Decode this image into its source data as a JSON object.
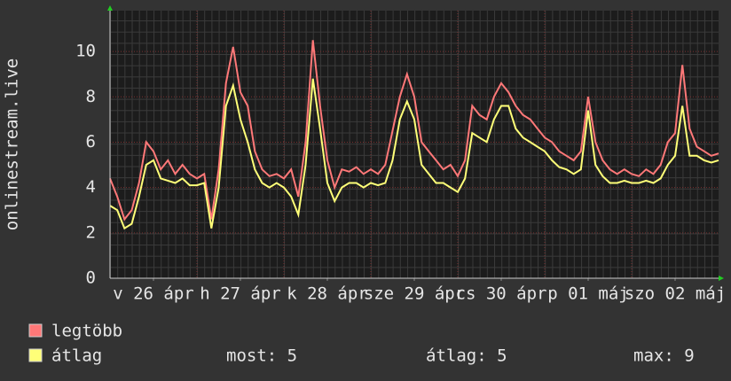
{
  "chart_data": {
    "type": "line",
    "y_label": "onlinestream.live",
    "xlim": [
      0,
      168
    ],
    "ylim": [
      0,
      11.8
    ],
    "xticks": [
      {
        "value": 12,
        "label": "v 26 ápr"
      },
      {
        "value": 36,
        "label": "h 27 ápr"
      },
      {
        "value": 60,
        "label": "k 28 ápr"
      },
      {
        "value": 84,
        "label": "sze 29 ápr"
      },
      {
        "value": 108,
        "label": "cs 30 ápr"
      },
      {
        "value": 132,
        "label": "p 01 máj"
      },
      {
        "value": 156,
        "label": "szo 02 máj"
      }
    ],
    "yticks": [
      0,
      2,
      4,
      6,
      8,
      10
    ],
    "grid": true,
    "x": [
      0,
      2,
      4,
      6,
      8,
      10,
      12,
      14,
      16,
      18,
      20,
      22,
      24,
      26,
      28,
      30,
      32,
      34,
      36,
      38,
      40,
      42,
      44,
      46,
      48,
      50,
      52,
      54,
      56,
      58,
      60,
      62,
      64,
      66,
      68,
      70,
      72,
      74,
      76,
      78,
      80,
      82,
      84,
      86,
      88,
      90,
      92,
      94,
      96,
      98,
      100,
      102,
      104,
      106,
      108,
      110,
      112,
      114,
      116,
      118,
      120,
      122,
      124,
      126,
      128,
      130,
      132,
      134,
      136,
      138,
      140,
      142,
      144,
      146,
      148,
      150,
      152,
      154,
      156,
      158,
      160,
      162,
      164,
      166,
      168
    ],
    "series": [
      {
        "name": "legtöbb",
        "color": "#ff7878",
        "values": [
          4.4,
          3.6,
          2.6,
          3.0,
          4.2,
          6.0,
          5.6,
          4.8,
          5.2,
          4.6,
          5.0,
          4.6,
          4.4,
          4.6,
          2.6,
          4.8,
          8.6,
          10.2,
          8.2,
          7.6,
          5.6,
          4.8,
          4.5,
          4.6,
          4.4,
          4.8,
          3.6,
          6.0,
          10.5,
          7.6,
          5.2,
          4.0,
          4.8,
          4.7,
          4.9,
          4.6,
          4.8,
          4.6,
          5.0,
          6.5,
          8.0,
          9.0,
          8.0,
          6.0,
          5.6,
          5.2,
          4.8,
          5.0,
          4.5,
          5.2,
          7.6,
          7.2,
          7.0,
          8.0,
          8.6,
          8.2,
          7.6,
          7.2,
          7.0,
          6.6,
          6.2,
          6.0,
          5.6,
          5.4,
          5.2,
          5.6,
          8.0,
          6.0,
          5.2,
          4.8,
          4.6,
          4.8,
          4.6,
          4.5,
          4.8,
          4.6,
          5.0,
          6.0,
          6.4,
          9.4,
          6.6,
          5.8,
          5.6,
          5.4,
          5.5
        ]
      },
      {
        "name": "átlag",
        "color": "#ffff78",
        "values": [
          3.2,
          3.0,
          2.2,
          2.4,
          3.6,
          5.0,
          5.2,
          4.4,
          4.3,
          4.2,
          4.4,
          4.1,
          4.1,
          4.2,
          2.2,
          4.0,
          7.6,
          8.5,
          7.0,
          6.0,
          4.8,
          4.2,
          4.0,
          4.2,
          4.0,
          3.6,
          2.8,
          5.0,
          8.8,
          6.6,
          4.2,
          3.4,
          4.0,
          4.2,
          4.2,
          4.0,
          4.2,
          4.1,
          4.2,
          5.2,
          7.0,
          7.8,
          7.0,
          5.0,
          4.6,
          4.2,
          4.2,
          4.0,
          3.8,
          4.4,
          6.4,
          6.2,
          6.0,
          7.0,
          7.6,
          7.6,
          6.6,
          6.2,
          6.0,
          5.8,
          5.6,
          5.2,
          4.9,
          4.8,
          4.6,
          4.8,
          7.4,
          5.0,
          4.5,
          4.2,
          4.2,
          4.3,
          4.2,
          4.2,
          4.3,
          4.2,
          4.4,
          5.0,
          5.4,
          7.6,
          5.4,
          5.4,
          5.2,
          5.1,
          5.2
        ]
      }
    ],
    "stats": [
      "most: 5",
      "átlag: 5",
      "max: 9"
    ]
  }
}
